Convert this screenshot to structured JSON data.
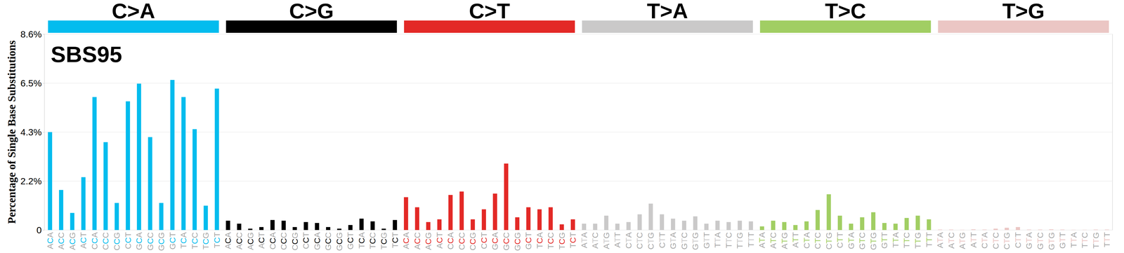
{
  "chart_data": {
    "type": "bar",
    "title": "SBS95",
    "ylabel": "Percentage of Single Base Substitutions",
    "groups": [
      {
        "name": "C>A",
        "color": "#03bcee"
      },
      {
        "name": "C>G",
        "color": "#010101"
      },
      {
        "name": "C>T",
        "color": "#e32926"
      },
      {
        "name": "T>A",
        "color": "#cac9c9"
      },
      {
        "name": "T>C",
        "color": "#a1ce63"
      },
      {
        "name": "T>G",
        "color": "#ebc6c4"
      }
    ],
    "categories": [
      "ACA",
      "ACC",
      "ACG",
      "ACT",
      "CCA",
      "CCC",
      "CCG",
      "CCT",
      "GCA",
      "GCC",
      "GCG",
      "GCT",
      "TCA",
      "TCC",
      "TCG",
      "TCT",
      "ACA",
      "ACC",
      "ACG",
      "ACT",
      "CCA",
      "CCC",
      "CCG",
      "CCT",
      "GCA",
      "GCC",
      "GCG",
      "GCT",
      "TCA",
      "TCC",
      "TCG",
      "TCT",
      "ACA",
      "ACC",
      "ACG",
      "ACT",
      "CCA",
      "CCC",
      "CCG",
      "CCT",
      "GCA",
      "GCC",
      "GCG",
      "GCT",
      "TCA",
      "TCC",
      "TCG",
      "TCT",
      "ATA",
      "ATC",
      "ATG",
      "ATT",
      "CTA",
      "CTC",
      "CTG",
      "CTT",
      "GTA",
      "GTC",
      "GTG",
      "GTT",
      "TTA",
      "TTC",
      "TTG",
      "TTT",
      "ATA",
      "ATC",
      "ATG",
      "ATT",
      "CTA",
      "CTC",
      "CTG",
      "CTT",
      "GTA",
      "GTC",
      "GTG",
      "GTT",
      "TTA",
      "TTC",
      "TTG",
      "TTT",
      "ATA",
      "ATC",
      "ATG",
      "ATT",
      "CTA",
      "CTC",
      "CTG",
      "CTT",
      "GTA",
      "GTC",
      "GTG",
      "GTT",
      "TTA",
      "TTC",
      "TTG",
      "TTT"
    ],
    "values": [
      4.3,
      1.76,
      0.75,
      2.32,
      5.84,
      3.86,
      1.19,
      5.65,
      6.43,
      4.08,
      1.19,
      6.59,
      5.84,
      4.43,
      1.07,
      6.21,
      0.41,
      0.28,
      0.06,
      0.13,
      0.44,
      0.41,
      0.13,
      0.35,
      0.31,
      0.13,
      0.06,
      0.22,
      0.5,
      0.38,
      0.06,
      0.44,
      1.44,
      1.0,
      0.35,
      0.47,
      1.54,
      1.69,
      0.47,
      0.91,
      1.6,
      2.92,
      0.56,
      1.0,
      0.91,
      1.0,
      0.25,
      0.47,
      0.28,
      0.28,
      0.63,
      0.28,
      0.35,
      0.69,
      1.16,
      0.69,
      0.5,
      0.41,
      0.6,
      0.28,
      0.41,
      0.35,
      0.41,
      0.38,
      0.16,
      0.41,
      0.35,
      0.22,
      0.38,
      0.88,
      1.57,
      0.63,
      0.28,
      0.56,
      0.78,
      0.31,
      0.28,
      0.53,
      0.63,
      0.47,
      0.02,
      0.02,
      0.01,
      0.03,
      0.02,
      0.06,
      0.1,
      0.13,
      0.02,
      0.02,
      0.03,
      0.02,
      0.01,
      0.01,
      0.02,
      0.02
    ],
    "colors": [
      "#03bcee",
      "#03bcee",
      "#03bcee",
      "#03bcee",
      "#03bcee",
      "#03bcee",
      "#03bcee",
      "#03bcee",
      "#03bcee",
      "#03bcee",
      "#03bcee",
      "#03bcee",
      "#03bcee",
      "#03bcee",
      "#03bcee",
      "#03bcee",
      "#010101",
      "#010101",
      "#010101",
      "#010101",
      "#010101",
      "#010101",
      "#010101",
      "#010101",
      "#010101",
      "#010101",
      "#010101",
      "#010101",
      "#010101",
      "#010101",
      "#010101",
      "#010101",
      "#e32926",
      "#e32926",
      "#e32926",
      "#e32926",
      "#e32926",
      "#e32926",
      "#e32926",
      "#e32926",
      "#e32926",
      "#e32926",
      "#e32926",
      "#e32926",
      "#e32926",
      "#e32926",
      "#e32926",
      "#e32926",
      "#cac9c9",
      "#cac9c9",
      "#cac9c9",
      "#cac9c9",
      "#cac9c9",
      "#cac9c9",
      "#cac9c9",
      "#cac9c9",
      "#cac9c9",
      "#cac9c9",
      "#cac9c9",
      "#cac9c9",
      "#cac9c9",
      "#cac9c9",
      "#cac9c9",
      "#cac9c9",
      "#a1ce63",
      "#a1ce63",
      "#a1ce63",
      "#a1ce63",
      "#a1ce63",
      "#a1ce63",
      "#a1ce63",
      "#a1ce63",
      "#a1ce63",
      "#a1ce63",
      "#a1ce63",
      "#a1ce63",
      "#a1ce63",
      "#a1ce63",
      "#a1ce63",
      "#a1ce63",
      "#ebc6c4",
      "#ebc6c4",
      "#ebc6c4",
      "#ebc6c4",
      "#ebc6c4",
      "#ebc6c4",
      "#ebc6c4",
      "#ebc6c4",
      "#ebc6c4",
      "#ebc6c4",
      "#ebc6c4",
      "#ebc6c4",
      "#ebc6c4",
      "#ebc6c4",
      "#ebc6c4",
      "#ebc6c4"
    ],
    "ylim": [
      0,
      8.6
    ],
    "yticks": [
      0,
      {
        "value": 2.15,
        "label": "2.2%"
      },
      {
        "value": 4.3,
        "label": "4.3%"
      },
      {
        "value": 6.45,
        "label": "6.5%"
      },
      {
        "value": 8.6,
        "label": "8.6%"
      }
    ],
    "grid": true
  }
}
